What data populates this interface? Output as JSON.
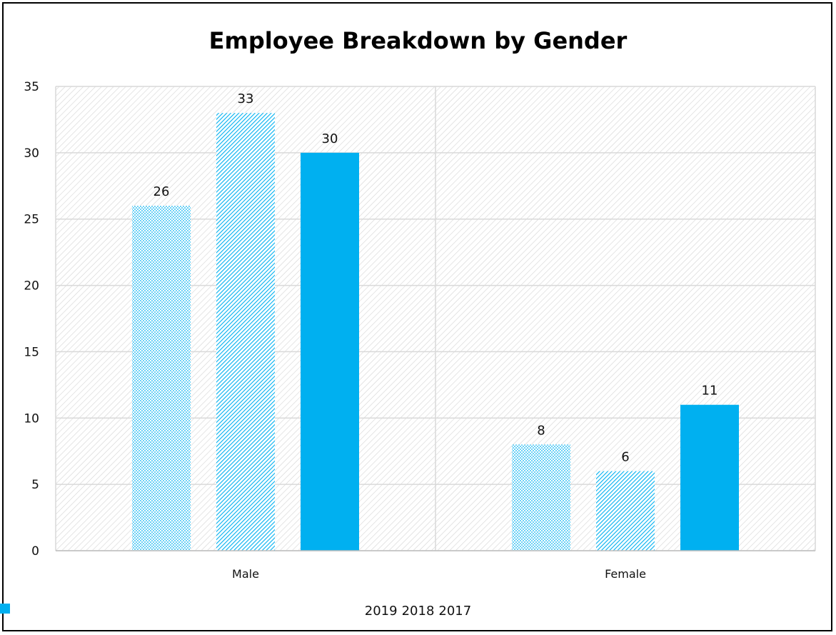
{
  "chart_data": {
    "type": "bar",
    "title": "Employee Breakdown by Gender",
    "categories": [
      "Male",
      "Female"
    ],
    "series": [
      {
        "name": "2019",
        "values": [
          26,
          8
        ],
        "pattern": "dots",
        "color": "#00b0f0"
      },
      {
        "name": "2018",
        "values": [
          33,
          6
        ],
        "pattern": "diagonal",
        "color": "#00b0f0"
      },
      {
        "name": "2017",
        "values": [
          30,
          11
        ],
        "pattern": "solid",
        "color": "#00b0f0"
      }
    ],
    "ylim": [
      0,
      35
    ],
    "yticks": [
      0,
      5,
      10,
      15,
      20,
      25,
      30,
      35
    ],
    "grid": true,
    "legend_position": "bottom",
    "data_labels": true,
    "background_pattern": "diagonal-hatch"
  }
}
